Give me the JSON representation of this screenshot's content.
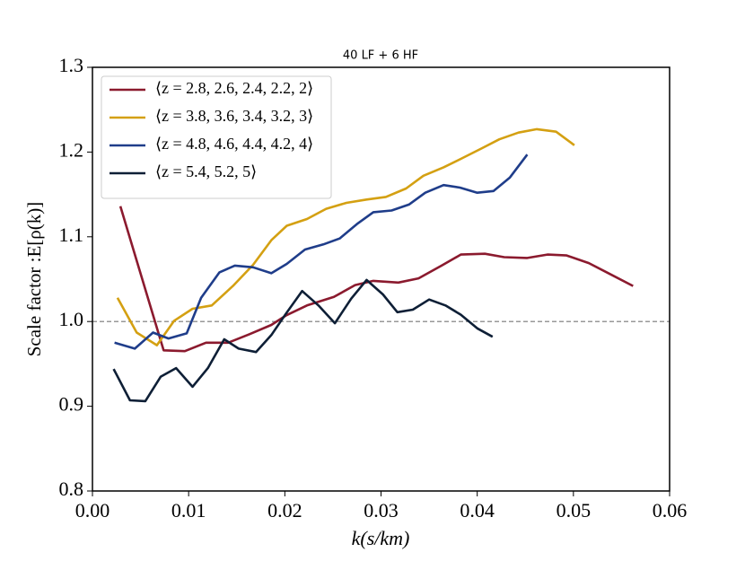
{
  "chart_data": {
    "type": "line",
    "title": "40 LF + 6 HF",
    "xlabel": "k(s/km)",
    "ylabel": "Scale factor :E[ρ(k)]",
    "xlim": [
      0,
      0.06
    ],
    "ylim": [
      0.8,
      1.3
    ],
    "xticks": [
      {
        "value": 0,
        "label": "0.00"
      },
      0.01,
      0.02,
      0.03,
      0.04,
      0.05,
      0.06
    ],
    "yticks": [
      0.8,
      0.9,
      {
        "value": 1.0,
        "label": "1.0"
      },
      1.1,
      1.2,
      1.3
    ],
    "hline": 1.0,
    "legend": "upper left",
    "series": [
      {
        "name": "⟨z = 2.8, 2.6, 2.4, 2.2, 2⟩",
        "color": "#8b1a2e",
        "x": [
          0.0029,
          0.0074,
          0.0096,
          0.0118,
          0.0141,
          0.0163,
          0.0186,
          0.0201,
          0.0223,
          0.0251,
          0.0273,
          0.0292,
          0.0318,
          0.0339,
          0.0363,
          0.0383,
          0.0408,
          0.0428,
          0.0452,
          0.0473,
          0.0493,
          0.0516,
          0.0538,
          0.0562
        ],
        "values": [
          1.136,
          0.966,
          0.965,
          0.975,
          0.975,
          0.985,
          0.996,
          1.007,
          1.019,
          1.029,
          1.043,
          1.048,
          1.046,
          1.051,
          1.066,
          1.079,
          1.08,
          1.076,
          1.075,
          1.079,
          1.078,
          1.069,
          1.056,
          1.042
        ]
      },
      {
        "name": "⟨z = 3.8, 3.6, 3.4, 3.2, 3⟩",
        "color": "#d4a012",
        "x": [
          0.0026,
          0.0046,
          0.0067,
          0.0085,
          0.0104,
          0.0124,
          0.0146,
          0.0167,
          0.0186,
          0.0202,
          0.0223,
          0.0243,
          0.0264,
          0.0285,
          0.0305,
          0.0326,
          0.0344,
          0.0365,
          0.0383,
          0.0404,
          0.0423,
          0.0443,
          0.0462,
          0.0482,
          0.0501
        ],
        "values": [
          1.028,
          0.987,
          0.972,
          1.001,
          1.015,
          1.019,
          1.042,
          1.067,
          1.096,
          1.113,
          1.121,
          1.133,
          1.14,
          1.144,
          1.147,
          1.157,
          1.172,
          1.182,
          1.192,
          1.204,
          1.215,
          1.223,
          1.227,
          1.224,
          1.208
        ]
      },
      {
        "name": "⟨z = 4.8, 4.6, 4.4, 4.2, 4⟩",
        "color": "#1f3d8a",
        "x": [
          0.0023,
          0.0044,
          0.0063,
          0.0079,
          0.0098,
          0.0113,
          0.0132,
          0.0148,
          0.0167,
          0.0186,
          0.0202,
          0.0221,
          0.024,
          0.0257,
          0.0275,
          0.0292,
          0.0311,
          0.0329,
          0.0346,
          0.0365,
          0.0382,
          0.04,
          0.0417,
          0.0434,
          0.0452
        ],
        "values": [
          0.975,
          0.968,
          0.987,
          0.98,
          0.986,
          1.028,
          1.058,
          1.066,
          1.064,
          1.057,
          1.068,
          1.085,
          1.091,
          1.098,
          1.115,
          1.129,
          1.131,
          1.138,
          1.152,
          1.161,
          1.158,
          1.152,
          1.154,
          1.17,
          1.197
        ]
      },
      {
        "name": "⟨z = 5.4, 5.2, 5⟩",
        "color": "#0e1f36",
        "x": [
          0.0022,
          0.0039,
          0.0055,
          0.0071,
          0.0087,
          0.0104,
          0.012,
          0.0137,
          0.0152,
          0.017,
          0.0186,
          0.0201,
          0.0218,
          0.0235,
          0.0252,
          0.0269,
          0.0285,
          0.0302,
          0.0317,
          0.0333,
          0.035,
          0.0367,
          0.0383,
          0.04,
          0.0416
        ],
        "values": [
          0.944,
          0.907,
          0.906,
          0.935,
          0.945,
          0.923,
          0.945,
          0.979,
          0.968,
          0.964,
          0.984,
          1.009,
          1.036,
          1.019,
          0.998,
          1.027,
          1.049,
          1.032,
          1.011,
          1.014,
          1.026,
          1.019,
          1.008,
          0.992,
          0.982
        ]
      }
    ]
  }
}
